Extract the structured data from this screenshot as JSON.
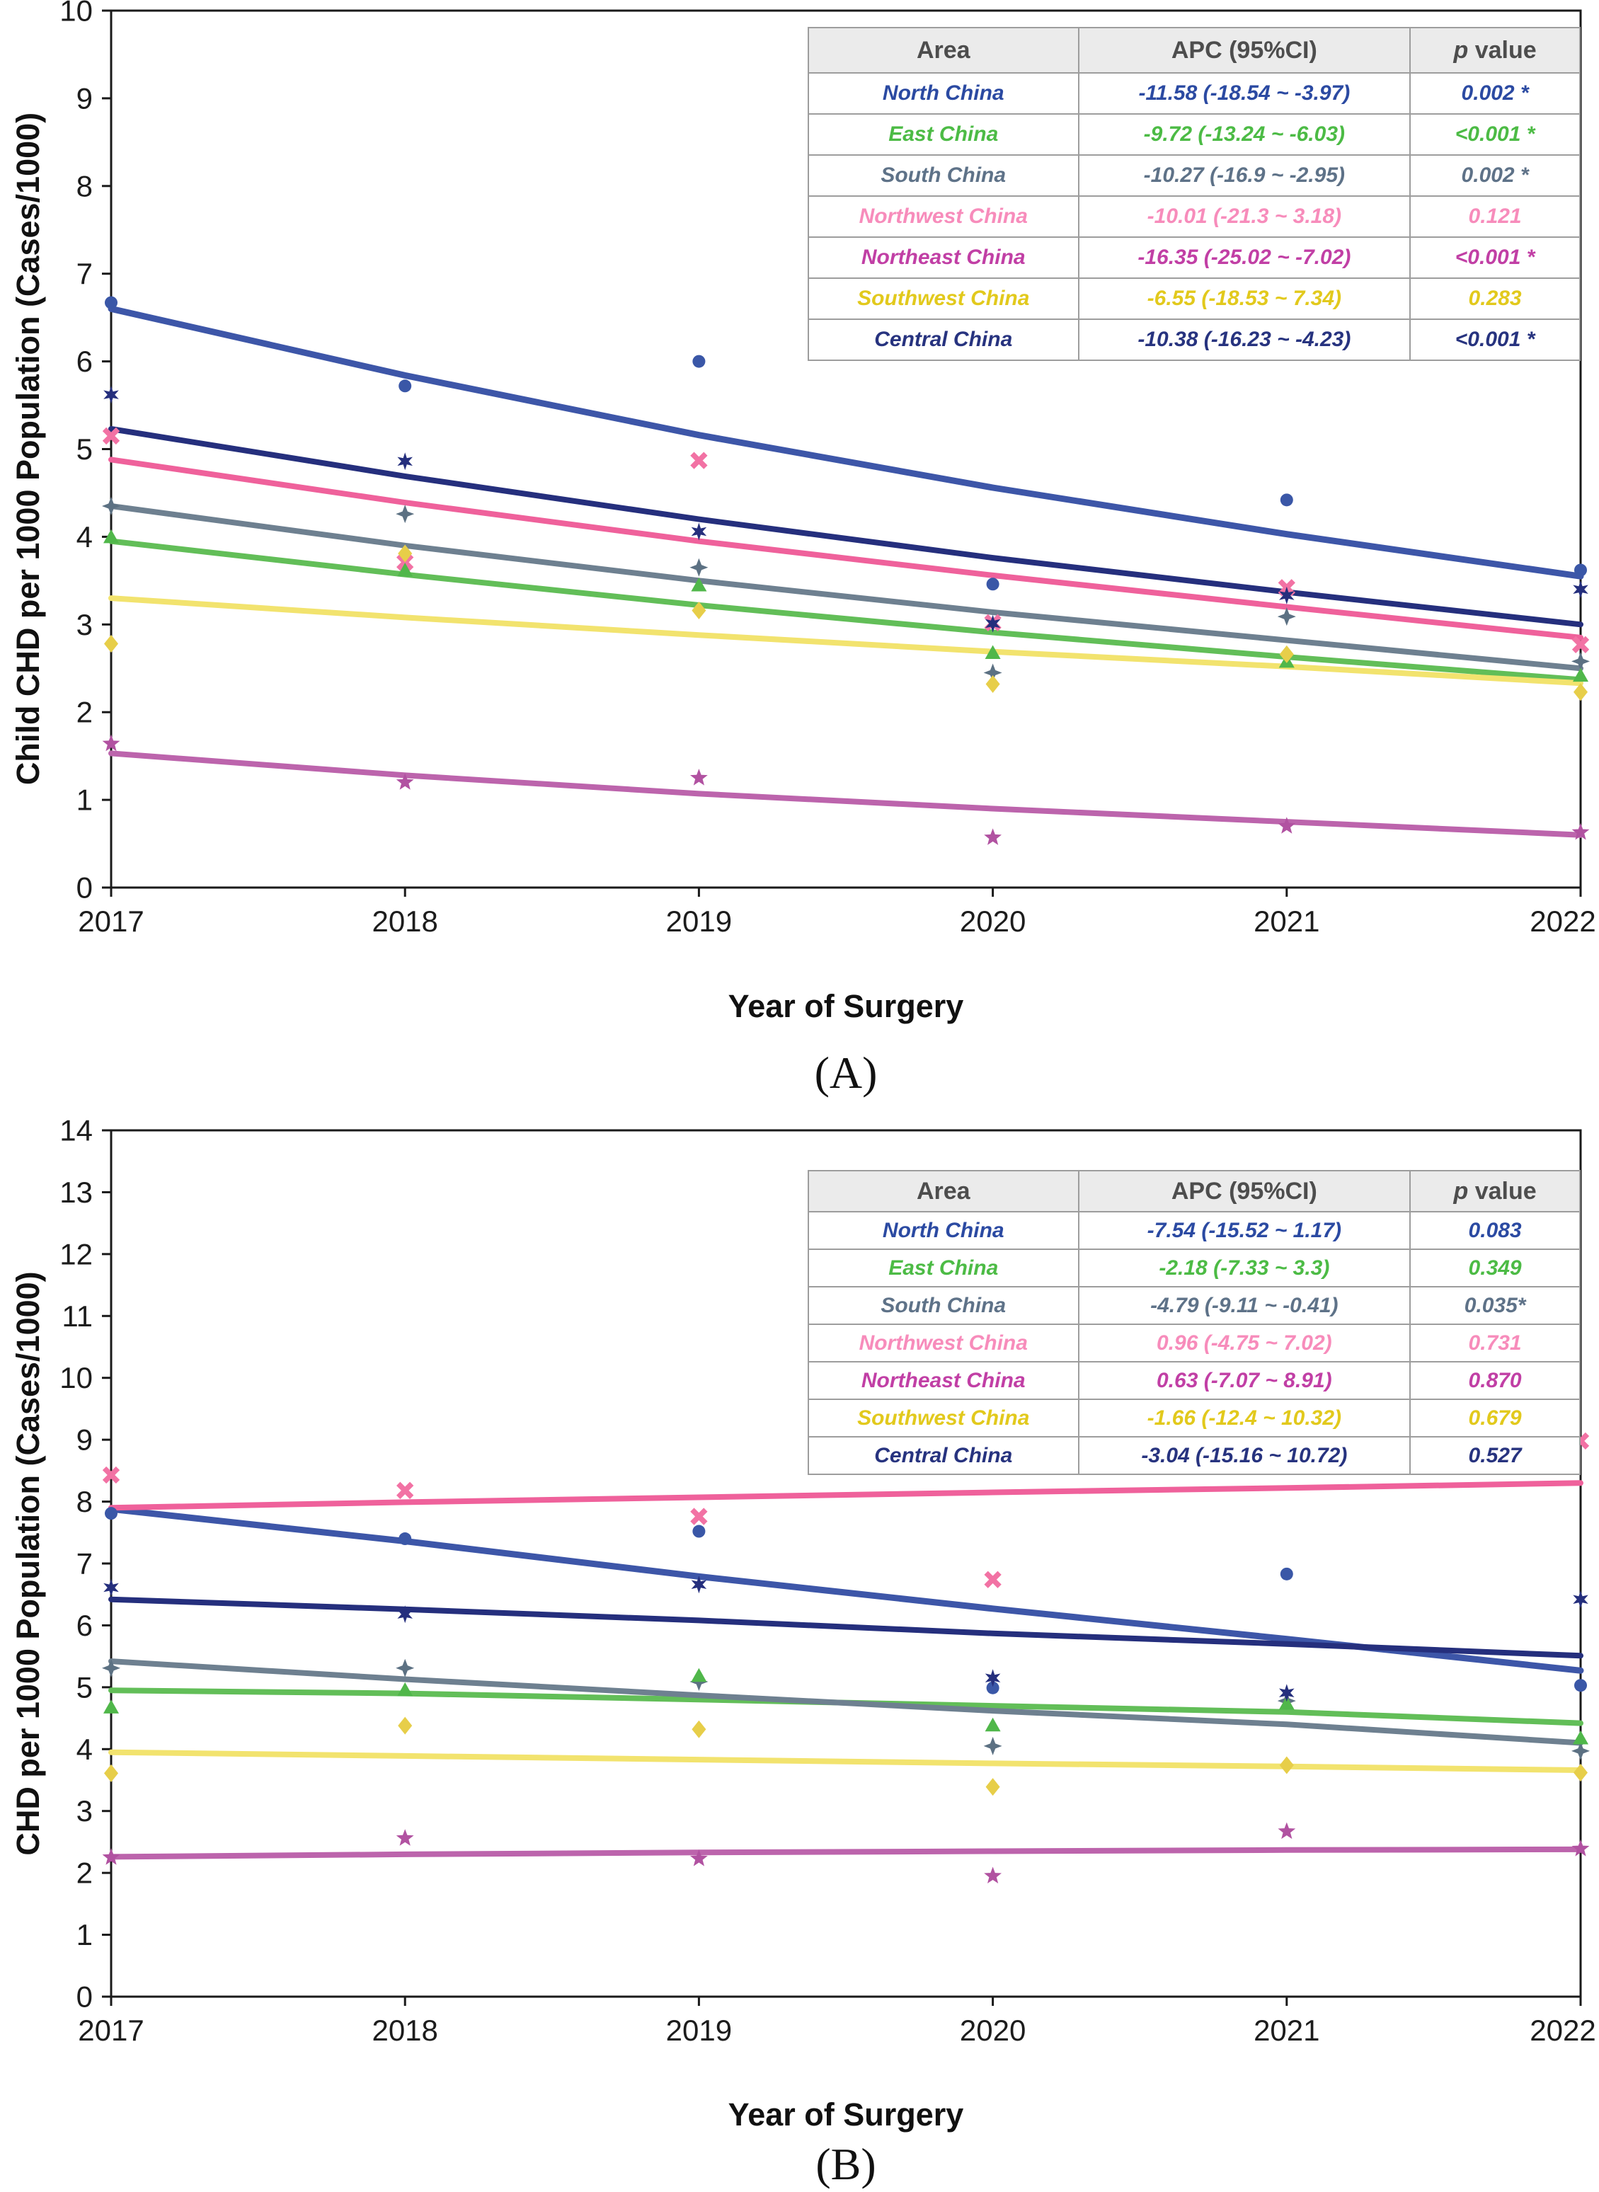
{
  "chart_data": [
    {
      "type": "scatter",
      "panel": "A",
      "caption": "(A)",
      "xlabel": "Year of Surgery",
      "ylabel": "Child CHD per 1000 Population (Cases/1000)",
      "x": [
        2017,
        2018,
        2019,
        2020,
        2021,
        2022
      ],
      "ylim": [
        0,
        10
      ],
      "ytick_step": 1,
      "grid": false,
      "legend_headers": [
        "Area",
        "APC (95%CI)",
        "p value"
      ],
      "marker_draw_order": [
        "Northwest China",
        "South China",
        "East China",
        "Southwest China",
        "Northeast China",
        "North China",
        "Central China"
      ],
      "series": [
        {
          "name": "North China",
          "marker": "circle",
          "line_color": "#3D56A8",
          "marker_color": "#3A57A7",
          "text_color": "#2B4AA2",
          "line_width": 9,
          "points": [
            6.67,
            5.72,
            6.0,
            3.46,
            4.42,
            3.62
          ],
          "trend": [
            6.6,
            5.84,
            5.16,
            4.56,
            4.03,
            3.55
          ],
          "apc": "-11.58 (-18.54 ~ -3.97)",
          "p": "0.002 *"
        },
        {
          "name": "East China",
          "marker": "triangle",
          "line_color": "#62BE58",
          "marker_color": "#50B74A",
          "text_color": "#4CBB45",
          "line_width": 8,
          "points": [
            4.0,
            3.62,
            3.45,
            2.68,
            2.58,
            2.42
          ],
          "trend": [
            3.95,
            3.57,
            3.22,
            2.91,
            2.63,
            2.37
          ],
          "apc": "-9.72 (-13.24 ~ -6.03)",
          "p": "<0.001 *"
        },
        {
          "name": "South China",
          "marker": "diamond4",
          "line_color": "#6E8090",
          "marker_color": "#5C7183",
          "text_color": "#5E7288",
          "line_width": 8,
          "points": [
            4.35,
            4.26,
            3.65,
            2.45,
            3.09,
            2.58
          ],
          "trend": [
            4.35,
            3.9,
            3.5,
            3.14,
            2.82,
            2.5
          ],
          "apc": "-10.27 (-16.9 ~ -2.95)",
          "p": "0.002 *"
        },
        {
          "name": "Northwest China",
          "marker": "x",
          "line_color": "#EF619B",
          "marker_color": "#F272A4",
          "text_color": "#F78CBB",
          "line_width": 8,
          "points": [
            5.15,
            3.71,
            4.87,
            3.02,
            3.42,
            2.77
          ],
          "trend": [
            4.88,
            4.39,
            3.95,
            3.56,
            3.2,
            2.85
          ],
          "apc": "-10.01 (-21.3 ~ 3.18)",
          "p": "0.121"
        },
        {
          "name": "Northeast China",
          "marker": "star5",
          "line_color": "#BC64AC",
          "marker_color": "#B152A1",
          "text_color": "#C13FA5",
          "line_width": 8,
          "points": [
            1.64,
            1.2,
            1.25,
            0.57,
            0.7,
            0.63
          ],
          "trend": [
            1.53,
            1.28,
            1.07,
            0.9,
            0.75,
            0.6
          ],
          "apc": "-16.35 (-25.02 ~ -7.02)",
          "p": "<0.001 *"
        },
        {
          "name": "Southwest China",
          "marker": "diamond",
          "line_color": "#F2E36E",
          "marker_color": "#E7CE49",
          "text_color": "#E2C91C",
          "line_width": 8,
          "points": [
            2.78,
            3.81,
            3.16,
            2.32,
            2.66,
            2.23
          ],
          "trend": [
            3.3,
            3.08,
            2.88,
            2.69,
            2.52,
            2.33
          ],
          "apc": "-6.55 (-18.53 ~ 7.34)",
          "p": "0.283"
        },
        {
          "name": "Central China",
          "marker": "star6",
          "line_color": "#252F7D",
          "marker_color": "#252F7D",
          "text_color": "#27337F",
          "line_width": 8,
          "points": [
            5.62,
            4.86,
            4.06,
            3.01,
            3.33,
            3.4
          ],
          "trend": [
            5.23,
            4.69,
            4.2,
            3.76,
            3.37,
            3.0
          ],
          "apc": "-10.38 (-16.23 ~ -4.23)",
          "p": "<0.001 *"
        }
      ]
    },
    {
      "type": "scatter",
      "panel": "B",
      "caption": "(B)",
      "xlabel": "Year of Surgery",
      "ylabel": "CHD per 1000 Population (Cases/1000)",
      "x": [
        2017,
        2018,
        2019,
        2020,
        2021,
        2022
      ],
      "ylim": [
        0,
        14
      ],
      "ytick_step": 1,
      "grid": false,
      "legend_headers": [
        "Area",
        "APC (95%CI)",
        "p value"
      ],
      "marker_draw_order": [
        "Northwest China",
        "South China",
        "East China",
        "Southwest China",
        "Northeast China",
        "North China",
        "Central China"
      ],
      "series": [
        {
          "name": "North China",
          "marker": "circle",
          "line_color": "#3D56A8",
          "marker_color": "#3A57A7",
          "text_color": "#2B4AA2",
          "line_width": 9,
          "points": [
            7.81,
            7.4,
            7.52,
            4.99,
            6.83,
            5.03
          ],
          "trend": [
            7.88,
            7.36,
            6.79,
            6.27,
            5.78,
            5.27
          ],
          "apc": "-7.54 (-15.52 ~ 1.17)",
          "p": "0.083"
        },
        {
          "name": "East China",
          "marker": "triangle",
          "line_color": "#62BE58",
          "marker_color": "#50B74A",
          "text_color": "#4CBB45",
          "line_width": 8,
          "points": [
            4.68,
            4.96,
            5.19,
            4.39,
            4.74,
            4.18
          ],
          "trend": [
            4.95,
            4.9,
            4.8,
            4.7,
            4.6,
            4.42
          ],
          "apc": "-2.18 (-7.33 ~ 3.3)",
          "p": "0.349"
        },
        {
          "name": "South China",
          "marker": "diamond4",
          "line_color": "#6E8090",
          "marker_color": "#5C7183",
          "text_color": "#5E7288",
          "line_width": 8,
          "points": [
            5.31,
            5.31,
            5.09,
            4.05,
            4.78,
            3.97
          ],
          "trend": [
            5.42,
            5.13,
            4.87,
            4.62,
            4.4,
            4.1
          ],
          "apc": "-4.79 (-9.11 ~ -0.41)",
          "p": "0.035*"
        },
        {
          "name": "Northwest China",
          "marker": "x",
          "line_color": "#EF619B",
          "marker_color": "#F272A4",
          "text_color": "#F78CBB",
          "line_width": 8,
          "points": [
            8.43,
            8.18,
            7.76,
            6.74,
            8.66,
            8.98
          ],
          "trend": [
            7.9,
            7.99,
            8.07,
            8.15,
            8.22,
            8.3
          ],
          "apc": "0.96 (-4.75 ~ 7.02)",
          "p": "0.731"
        },
        {
          "name": "Northeast China",
          "marker": "star5",
          "line_color": "#BC64AC",
          "marker_color": "#B152A1",
          "text_color": "#C13FA5",
          "line_width": 8,
          "points": [
            2.25,
            2.56,
            2.23,
            1.95,
            2.67,
            2.39
          ],
          "trend": [
            2.26,
            2.3,
            2.33,
            2.35,
            2.37,
            2.38
          ],
          "apc": "0.63 (-7.07 ~ 8.91)",
          "p": "0.870"
        },
        {
          "name": "Southwest China",
          "marker": "diamond",
          "line_color": "#F2E36E",
          "marker_color": "#E7CE49",
          "text_color": "#E2C91C",
          "line_width": 8,
          "points": [
            3.61,
            4.38,
            4.32,
            3.39,
            3.74,
            3.62
          ],
          "trend": [
            3.95,
            3.89,
            3.83,
            3.77,
            3.72,
            3.66
          ],
          "apc": "-1.66 (-12.4 ~ 10.32)",
          "p": "0.679"
        },
        {
          "name": "Central China",
          "marker": "star6",
          "line_color": "#252F7D",
          "marker_color": "#252F7D",
          "text_color": "#27337F",
          "line_width": 8,
          "points": [
            6.61,
            6.18,
            6.66,
            5.15,
            4.91,
            6.42
          ],
          "trend": [
            6.42,
            6.26,
            6.08,
            5.87,
            5.7,
            5.51
          ],
          "apc": "-3.04 (-15.16 ~ 10.72)",
          "p": "0.527"
        }
      ]
    }
  ]
}
